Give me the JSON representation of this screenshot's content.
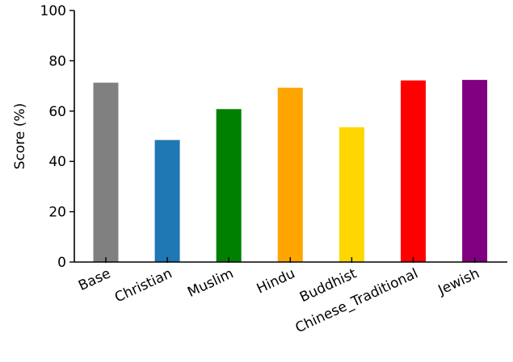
{
  "chart_data": {
    "type": "bar",
    "title": "",
    "xlabel": "",
    "ylabel": "Score (%)",
    "ylim": [
      0,
      100
    ],
    "yticks": [
      0,
      20,
      40,
      60,
      80,
      100
    ],
    "grid": false,
    "legend": "none",
    "categories": [
      "Base",
      "Christian",
      "Muslim",
      "Hindu",
      "Buddhist",
      "Chinese_Traditional",
      "Jewish"
    ],
    "values": [
      71.3,
      48.5,
      60.8,
      69.3,
      53.6,
      72.2,
      72.4
    ],
    "colors": [
      "#808080",
      "#1f77b4",
      "#008000",
      "#ffa500",
      "#ffd700",
      "#ff0000",
      "#800080"
    ]
  }
}
